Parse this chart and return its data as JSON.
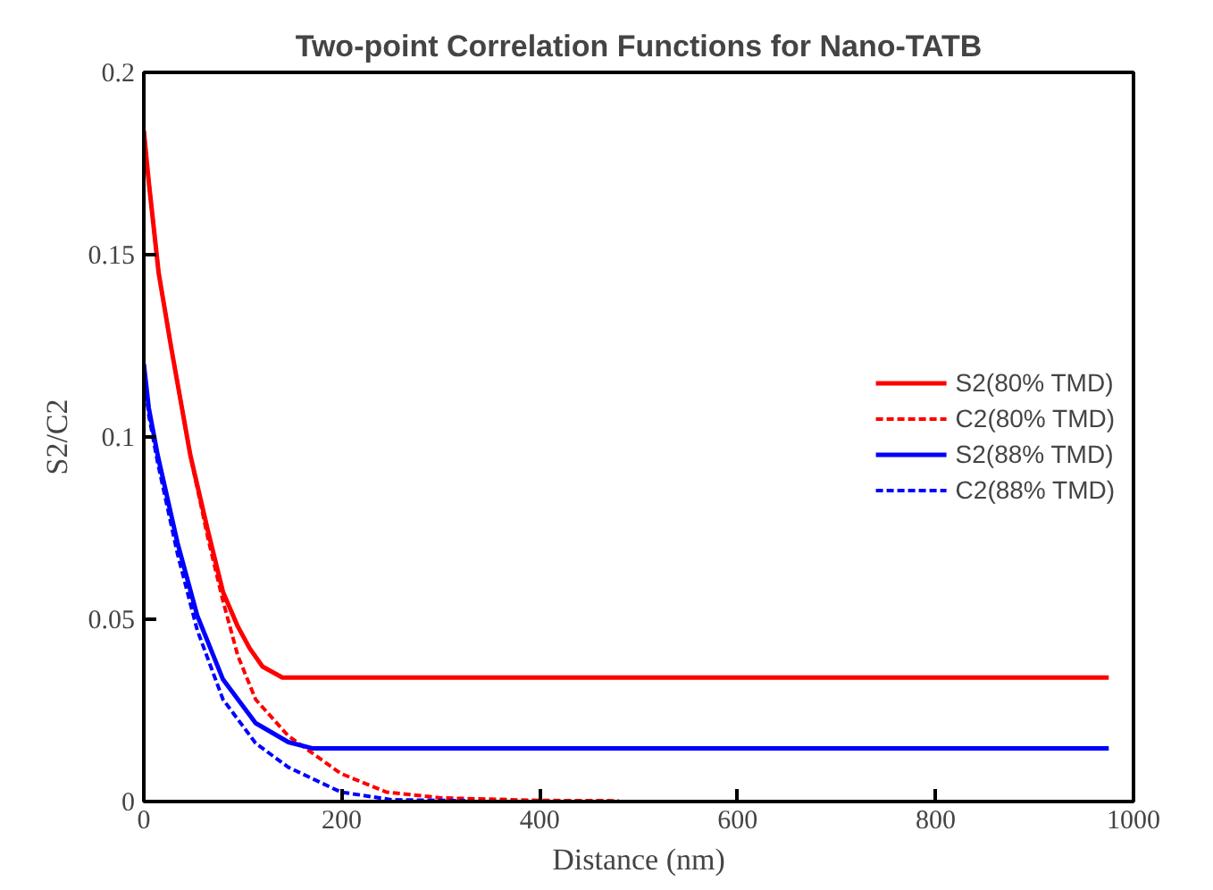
{
  "chart_data": {
    "type": "line",
    "title": "Two-point Correlation Functions for Nano-TATB",
    "xlabel": "Distance (nm)",
    "ylabel": "S2/C2",
    "xlim": [
      0,
      1000
    ],
    "ylim": [
      0,
      0.2
    ],
    "xticks": [
      0,
      200,
      400,
      600,
      800,
      1000
    ],
    "yticks": [
      0,
      0.05,
      0.1,
      0.15,
      0.2
    ],
    "grid": false,
    "legend": "right",
    "marker": "none",
    "series": [
      {
        "name": "S2(80% TMD)",
        "color": "#ff0000",
        "line_style": "solid",
        "x": [
          0,
          5,
          15,
          28,
          47,
          65,
          80,
          95,
          107,
          120,
          140,
          190,
          400,
          700,
          975
        ],
        "values": [
          0.184,
          0.17,
          0.145,
          0.124,
          0.095,
          0.074,
          0.0575,
          0.048,
          0.042,
          0.037,
          0.034,
          0.034,
          0.034,
          0.034,
          0.034
        ]
      },
      {
        "name": "C2(80% TMD)",
        "color": "#ff0000",
        "line_style": "dashed",
        "x": [
          0,
          5,
          15,
          28,
          47,
          65,
          80,
          95,
          113,
          146,
          199,
          245,
          300,
          400,
          480
        ],
        "values": [
          0.184,
          0.17,
          0.145,
          0.124,
          0.095,
          0.072,
          0.055,
          0.04,
          0.028,
          0.018,
          0.0077,
          0.0026,
          0.001,
          0.0003,
          0.0002
        ]
      },
      {
        "name": "S2(88% TMD)",
        "color": "#0000ff",
        "line_style": "solid",
        "x": [
          0,
          5,
          14,
          34,
          54,
          80,
          113,
          146,
          170,
          400,
          700,
          975
        ],
        "values": [
          0.12,
          0.108,
          0.095,
          0.071,
          0.051,
          0.0335,
          0.0215,
          0.0163,
          0.0146,
          0.0146,
          0.0146,
          0.0146
        ]
      },
      {
        "name": "C2(88% TMD)",
        "color": "#0000ff",
        "line_style": "dashed",
        "x": [
          0,
          5,
          14,
          34,
          54,
          80,
          113,
          146,
          199,
          250,
          325
        ],
        "values": [
          0.118,
          0.106,
          0.093,
          0.068,
          0.047,
          0.028,
          0.016,
          0.0094,
          0.0026,
          0.0005,
          0.0002
        ]
      }
    ]
  }
}
